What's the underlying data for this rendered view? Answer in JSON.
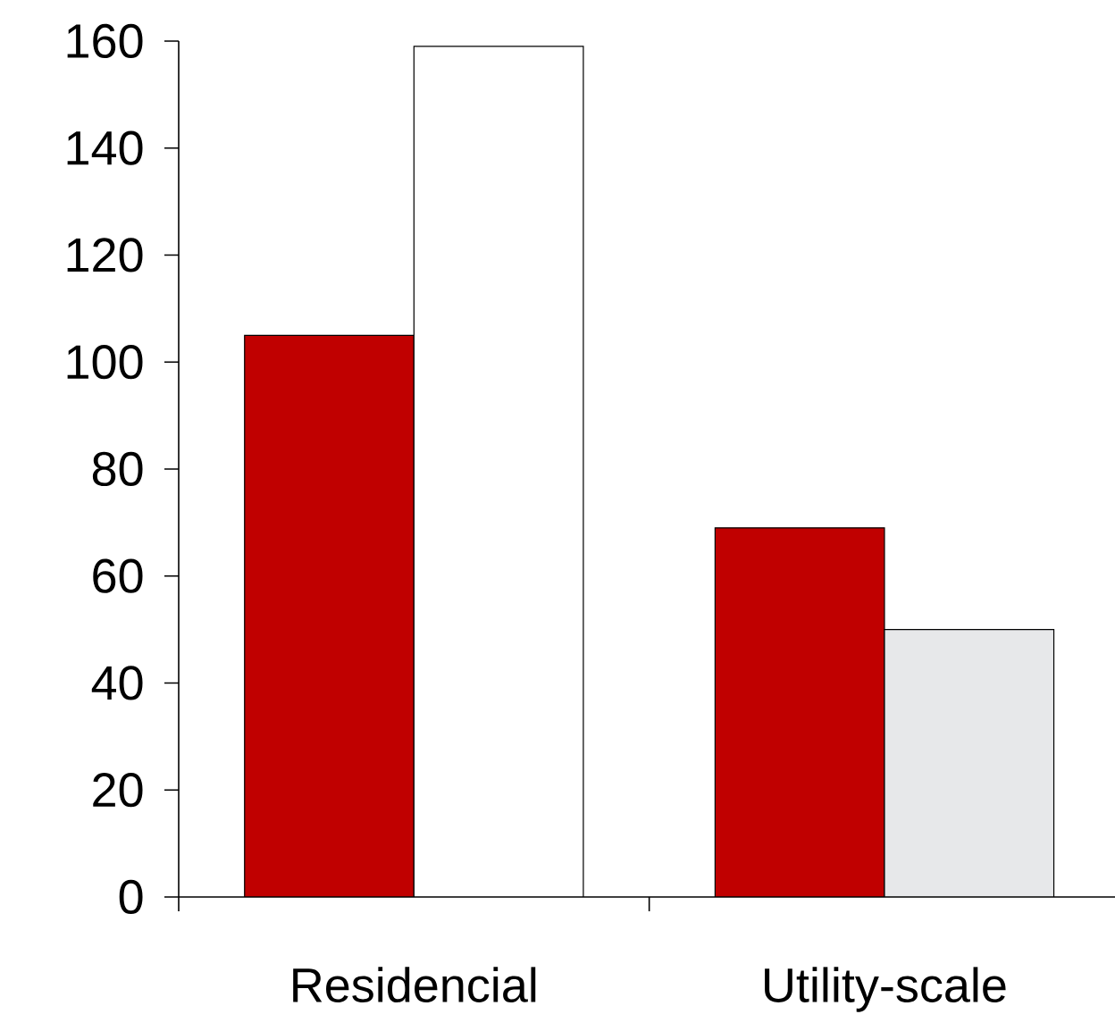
{
  "chart_data": {
    "type": "bar",
    "categories": [
      "Residencial",
      "Utility-scale"
    ],
    "series": [
      {
        "color": "#c00000",
        "values": [
          105,
          69
        ]
      },
      {
        "colors": [
          "#ffffff",
          "#e7e8ea"
        ],
        "values": [
          159,
          50
        ]
      }
    ],
    "ylim": [
      0,
      160
    ],
    "yticks": [
      0,
      20,
      40,
      60,
      80,
      100,
      120,
      140,
      160
    ],
    "grid": false
  }
}
